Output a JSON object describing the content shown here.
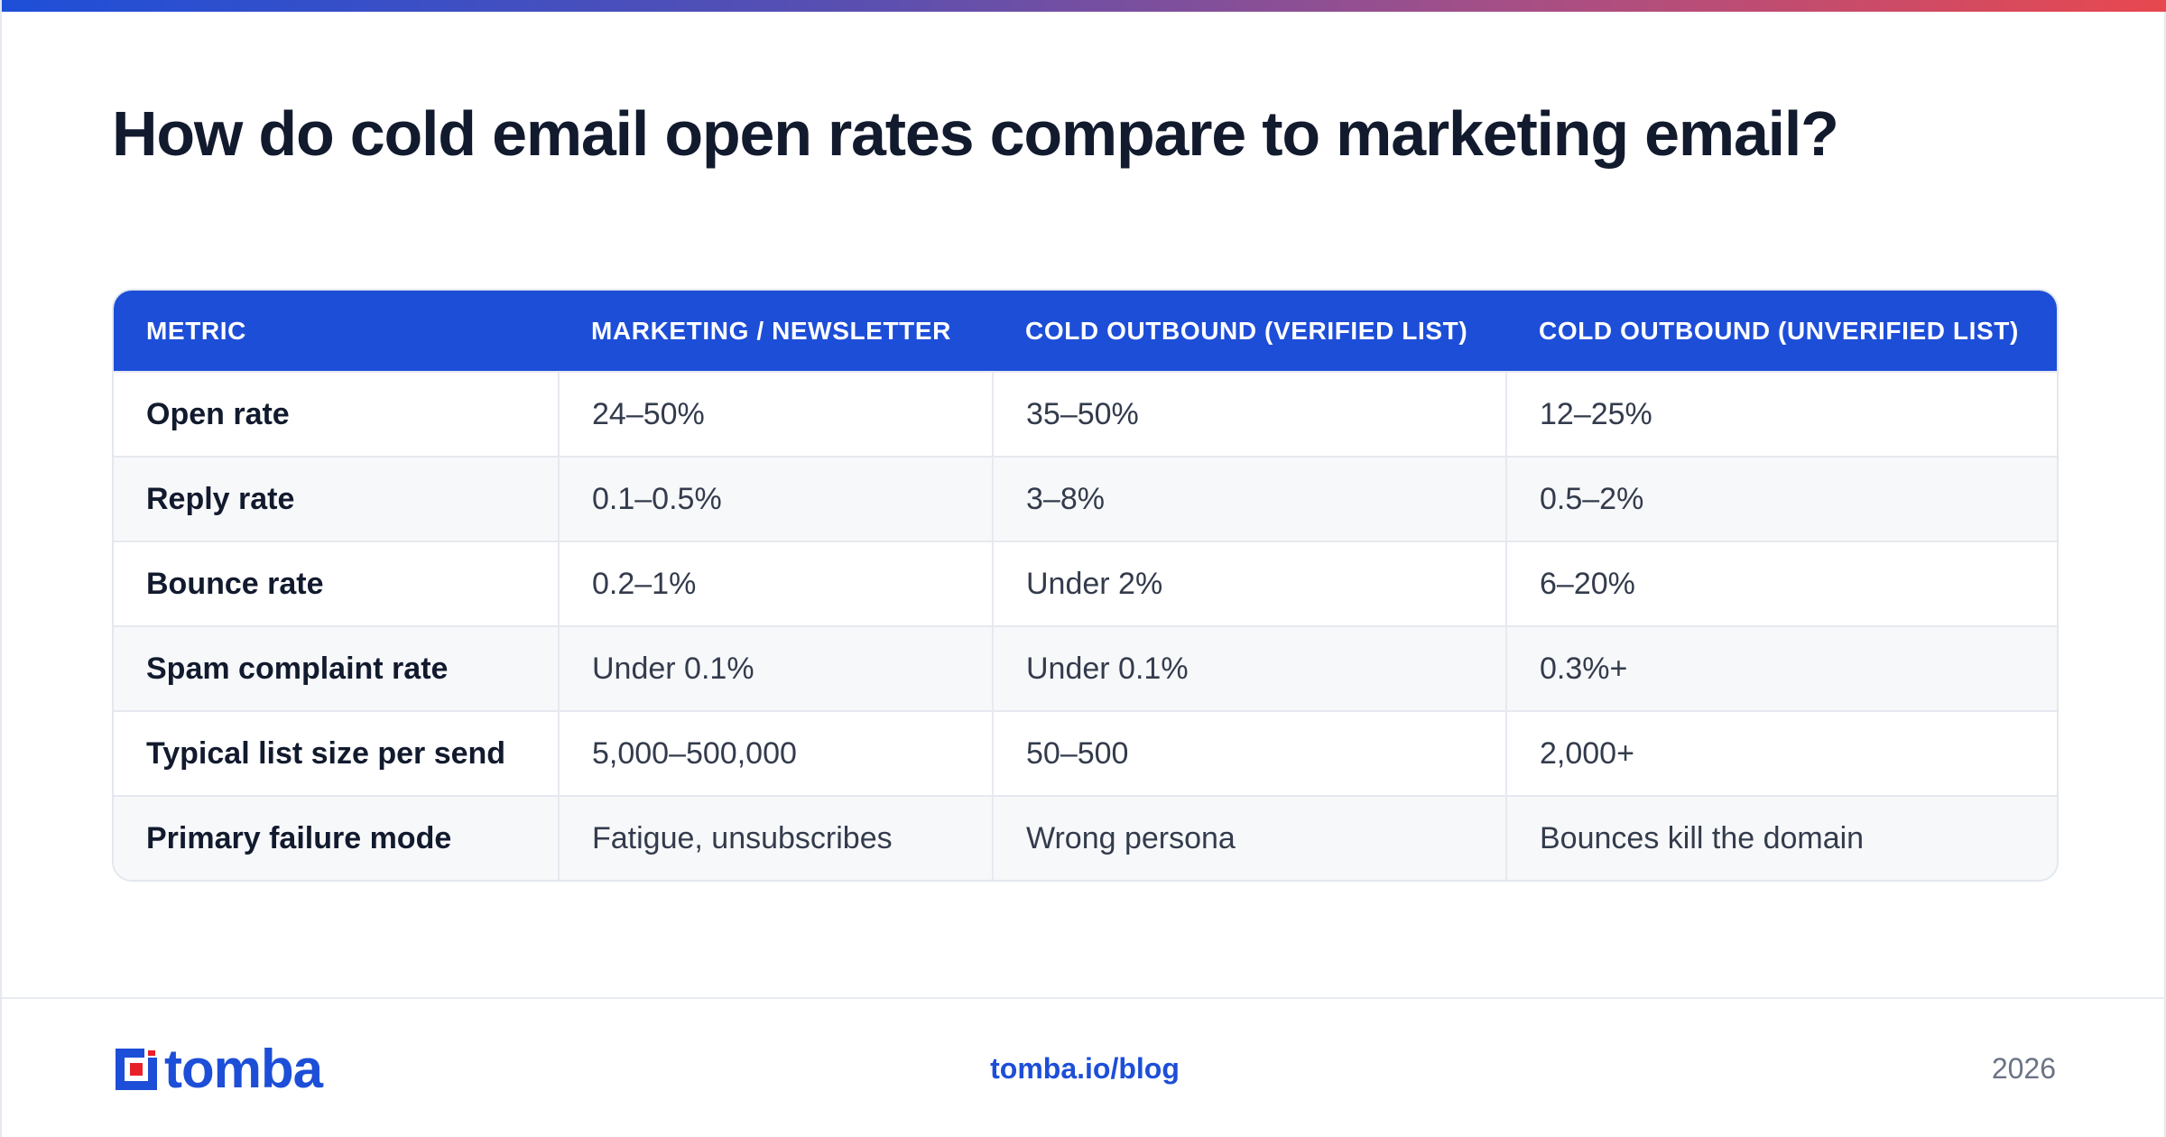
{
  "title": "How do cold email open rates compare to marketing email?",
  "table": {
    "headers": [
      "METRIC",
      "MARKETING / NEWSLETTER",
      "COLD OUTBOUND (VERIFIED LIST)",
      "COLD OUTBOUND (UNVERIFIED LIST)"
    ],
    "rows": [
      [
        "Open rate",
        "24–50%",
        "35–50%",
        "12–25%"
      ],
      [
        "Reply rate",
        "0.1–0.5%",
        "3–8%",
        "0.5–2%"
      ],
      [
        "Bounce rate",
        "0.2–1%",
        "Under 2%",
        "6–20%"
      ],
      [
        "Spam complaint rate",
        "Under 0.1%",
        "Under 0.1%",
        "0.3%+"
      ],
      [
        "Typical list size per send",
        "5,000–500,000",
        "50–500",
        "2,000+"
      ],
      [
        "Primary failure mode",
        "Fatigue, unsubscribes",
        "Wrong persona",
        "Bounces kill the domain"
      ]
    ]
  },
  "footer": {
    "logo_text": "tomba",
    "link": "tomba.io/blog",
    "year": "2026"
  },
  "colors": {
    "accent": "#1d4ed8",
    "logo_red": "#e8202a",
    "title": "#121a2e"
  }
}
